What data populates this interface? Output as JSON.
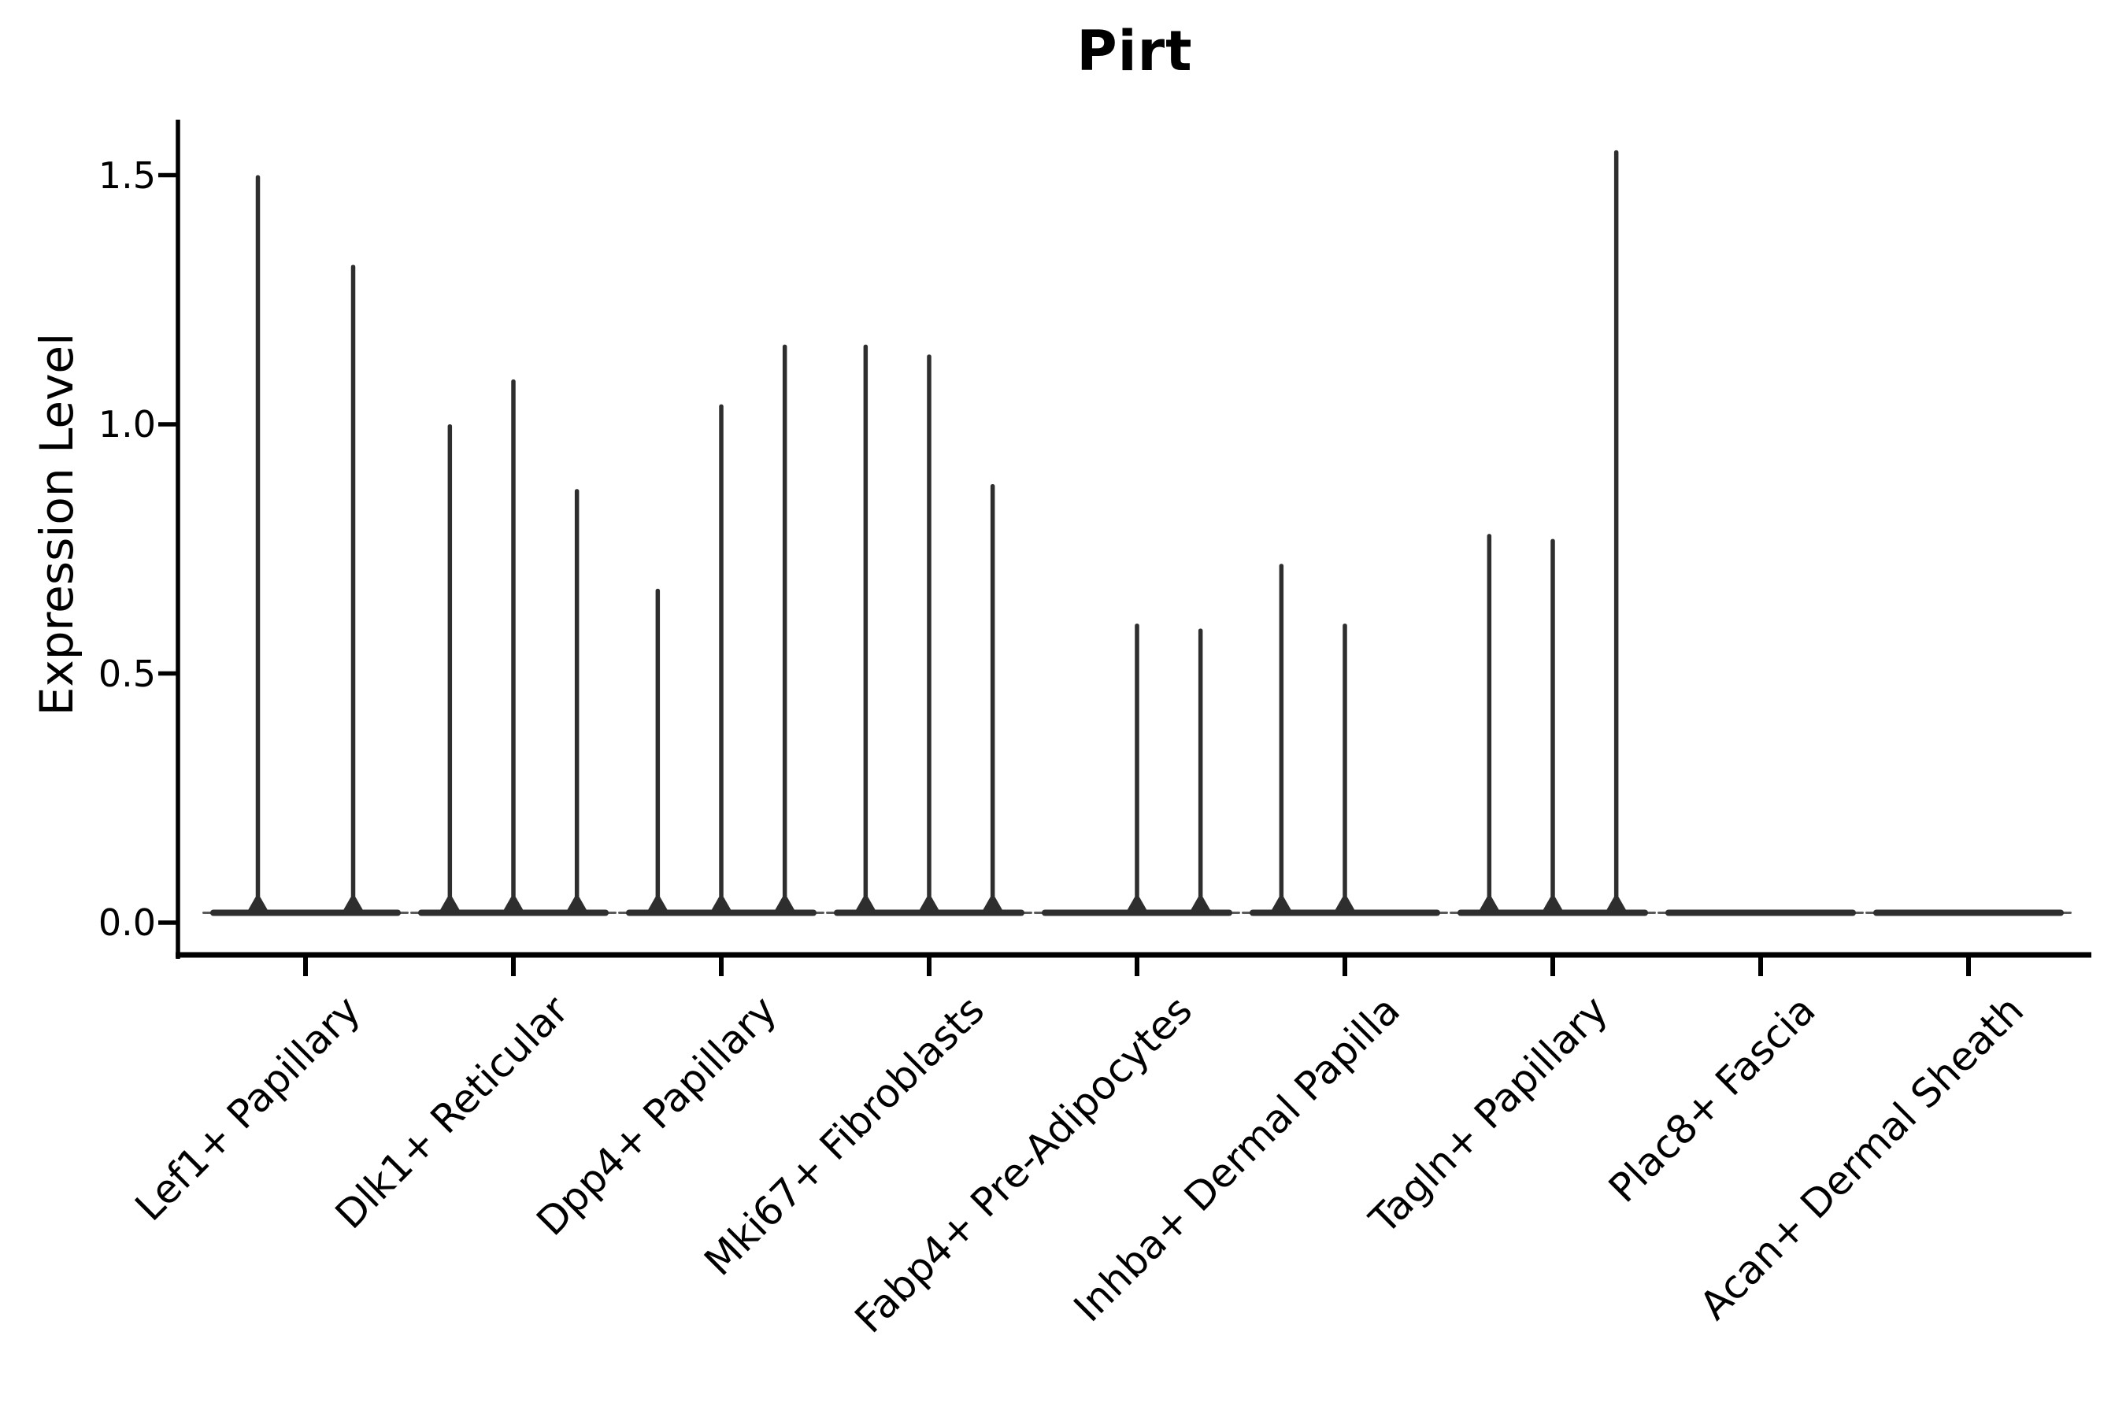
{
  "page": {
    "background": "#ffffff",
    "text_color": "#000000"
  },
  "chart_data": {
    "type": "violin",
    "title": "Pirt",
    "ylabel": "Expression Level",
    "xlabel": "",
    "grid": false,
    "legend": null,
    "ylim": [
      -0.06,
      1.61
    ],
    "yticks": [
      "0.0",
      "0.5",
      "1.0",
      "1.5"
    ],
    "violin_color": "#2e2e2e",
    "axis_color": "#000000",
    "description": "Violin plot of Pirt expression per fibroblast cluster; nearly all density collapsed at 0 (flat bases) with thin spikes up to the max expressing cell of each violin.",
    "categories": [
      "Lef1+ Papillary",
      "Dlk1+ Reticular",
      "Dpp4+ Papillary",
      "Mki67+ Fibroblasts",
      "Fabp4+ Pre-Adipocytes",
      "Inhba+ Dermal Papilla",
      "Tagln+ Papillary",
      "Plac8+ Fascia",
      "Acan+ Dermal Sheath"
    ],
    "violins": [
      {
        "category": "Lef1+ Papillary",
        "slots": 2,
        "spikes": [
          {
            "slot": 0,
            "max": 1.5
          },
          {
            "slot": 1,
            "max": 1.32
          }
        ]
      },
      {
        "category": "Dlk1+ Reticular",
        "slots": 3,
        "spikes": [
          {
            "slot": 0,
            "max": 1.0
          },
          {
            "slot": 1,
            "max": 1.09
          },
          {
            "slot": 2,
            "max": 0.87
          }
        ]
      },
      {
        "category": "Dpp4+ Papillary",
        "slots": 3,
        "spikes": [
          {
            "slot": 0,
            "max": 0.67
          },
          {
            "slot": 1,
            "max": 1.04
          },
          {
            "slot": 2,
            "max": 1.16
          }
        ]
      },
      {
        "category": "Mki67+ Fibroblasts",
        "slots": 3,
        "spikes": [
          {
            "slot": 0,
            "max": 1.16
          },
          {
            "slot": 1,
            "max": 1.14
          },
          {
            "slot": 2,
            "max": 0.88
          }
        ]
      },
      {
        "category": "Fabp4+ Pre-Adipocytes",
        "slots": 3,
        "spikes": [
          {
            "slot": 1,
            "max": 0.6
          },
          {
            "slot": 2,
            "max": 0.59
          }
        ]
      },
      {
        "category": "Inhba+ Dermal Papilla",
        "slots": 3,
        "spikes": [
          {
            "slot": 0,
            "max": 0.72
          },
          {
            "slot": 1,
            "max": 0.6
          }
        ]
      },
      {
        "category": "Tagln+ Papillary",
        "slots": 3,
        "spikes": [
          {
            "slot": 0,
            "max": 0.78
          },
          {
            "slot": 1,
            "max": 0.77
          },
          {
            "slot": 2,
            "max": 1.55
          }
        ]
      },
      {
        "category": "Plac8+ Fascia",
        "slots": 3,
        "spikes": []
      },
      {
        "category": "Acan+ Dermal Sheath",
        "slots": 3,
        "spikes": []
      }
    ]
  }
}
